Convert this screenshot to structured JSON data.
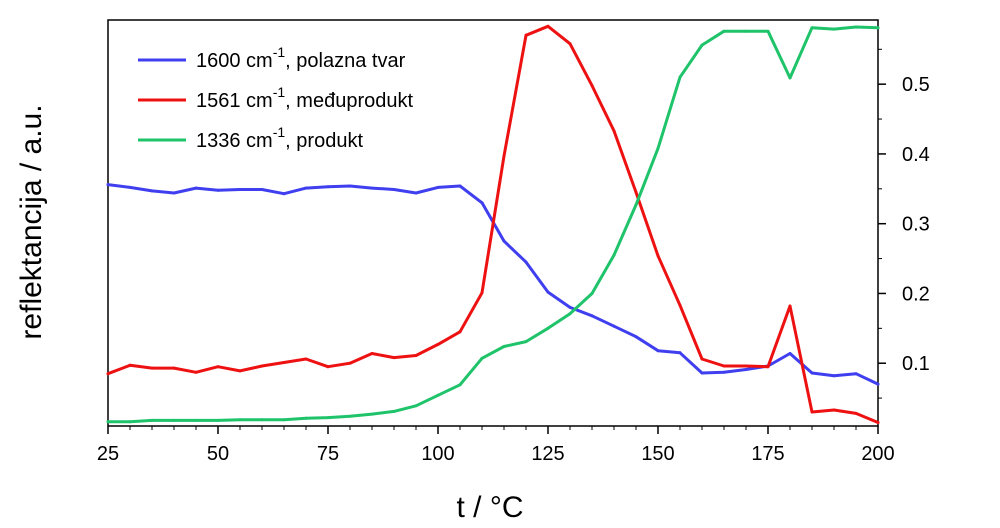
{
  "chart_data": {
    "type": "line",
    "title": "",
    "xlabel": "t / °C",
    "ylabel": "reflektancija / a.u.",
    "xlim": [
      25,
      200
    ],
    "ylim": [
      0.01,
      0.592
    ],
    "x_ticks": [
      25,
      50,
      75,
      100,
      125,
      150,
      175,
      200
    ],
    "y_ticks": [
      0.1,
      0.2,
      0.3,
      0.4,
      0.5
    ],
    "y_tick_labels": [
      "0.1",
      "0.2",
      "0.3",
      "0.4",
      "0.5"
    ],
    "y_axis_side": "right",
    "grid": false,
    "legend_position": "top-left",
    "x": [
      25,
      30,
      35,
      40,
      45,
      50,
      55,
      60,
      65,
      70,
      75,
      80,
      85,
      90,
      95,
      100,
      105,
      110,
      115,
      120,
      125,
      130,
      135,
      140,
      145,
      150,
      155,
      160,
      165,
      170,
      175,
      180,
      185,
      190,
      195,
      200
    ],
    "series": [
      {
        "name": "1600 cm",
        "superscript": "-1",
        "label_suffix": ", polazna tvar",
        "color": "#3f3ff0",
        "values": [
          0.356,
          0.352,
          0.347,
          0.344,
          0.351,
          0.348,
          0.349,
          0.349,
          0.343,
          0.351,
          0.353,
          0.354,
          0.351,
          0.349,
          0.344,
          0.352,
          0.354,
          0.33,
          0.275,
          0.245,
          0.202,
          0.18,
          0.168,
          0.153,
          0.138,
          0.118,
          0.115,
          0.086,
          0.087,
          0.091,
          0.096,
          0.114,
          0.086,
          0.082,
          0.085,
          0.07
        ]
      },
      {
        "name": "1561 cm",
        "superscript": "-1",
        "label_suffix": ", međuprodukt",
        "color": "#ee1111",
        "values": [
          0.085,
          0.097,
          0.093,
          0.093,
          0.087,
          0.095,
          0.089,
          0.096,
          0.101,
          0.106,
          0.095,
          0.1,
          0.114,
          0.108,
          0.111,
          0.127,
          0.145,
          0.201,
          0.397,
          0.57,
          0.583,
          0.558,
          0.498,
          0.433,
          0.345,
          0.254,
          0.183,
          0.106,
          0.096,
          0.096,
          0.095,
          0.182,
          0.03,
          0.033,
          0.028,
          0.015
        ]
      },
      {
        "name": "1336 cm",
        "superscript": "-1",
        "label_suffix": ", produkt",
        "color": "#1ec36a",
        "values": [
          0.016,
          0.016,
          0.018,
          0.018,
          0.018,
          0.018,
          0.019,
          0.019,
          0.019,
          0.021,
          0.022,
          0.024,
          0.027,
          0.031,
          0.039,
          0.054,
          0.069,
          0.107,
          0.124,
          0.131,
          0.15,
          0.171,
          0.2,
          0.255,
          0.327,
          0.408,
          0.51,
          0.556,
          0.576,
          0.576,
          0.576,
          0.509,
          0.581,
          0.579,
          0.582,
          0.581
        ]
      }
    ]
  }
}
